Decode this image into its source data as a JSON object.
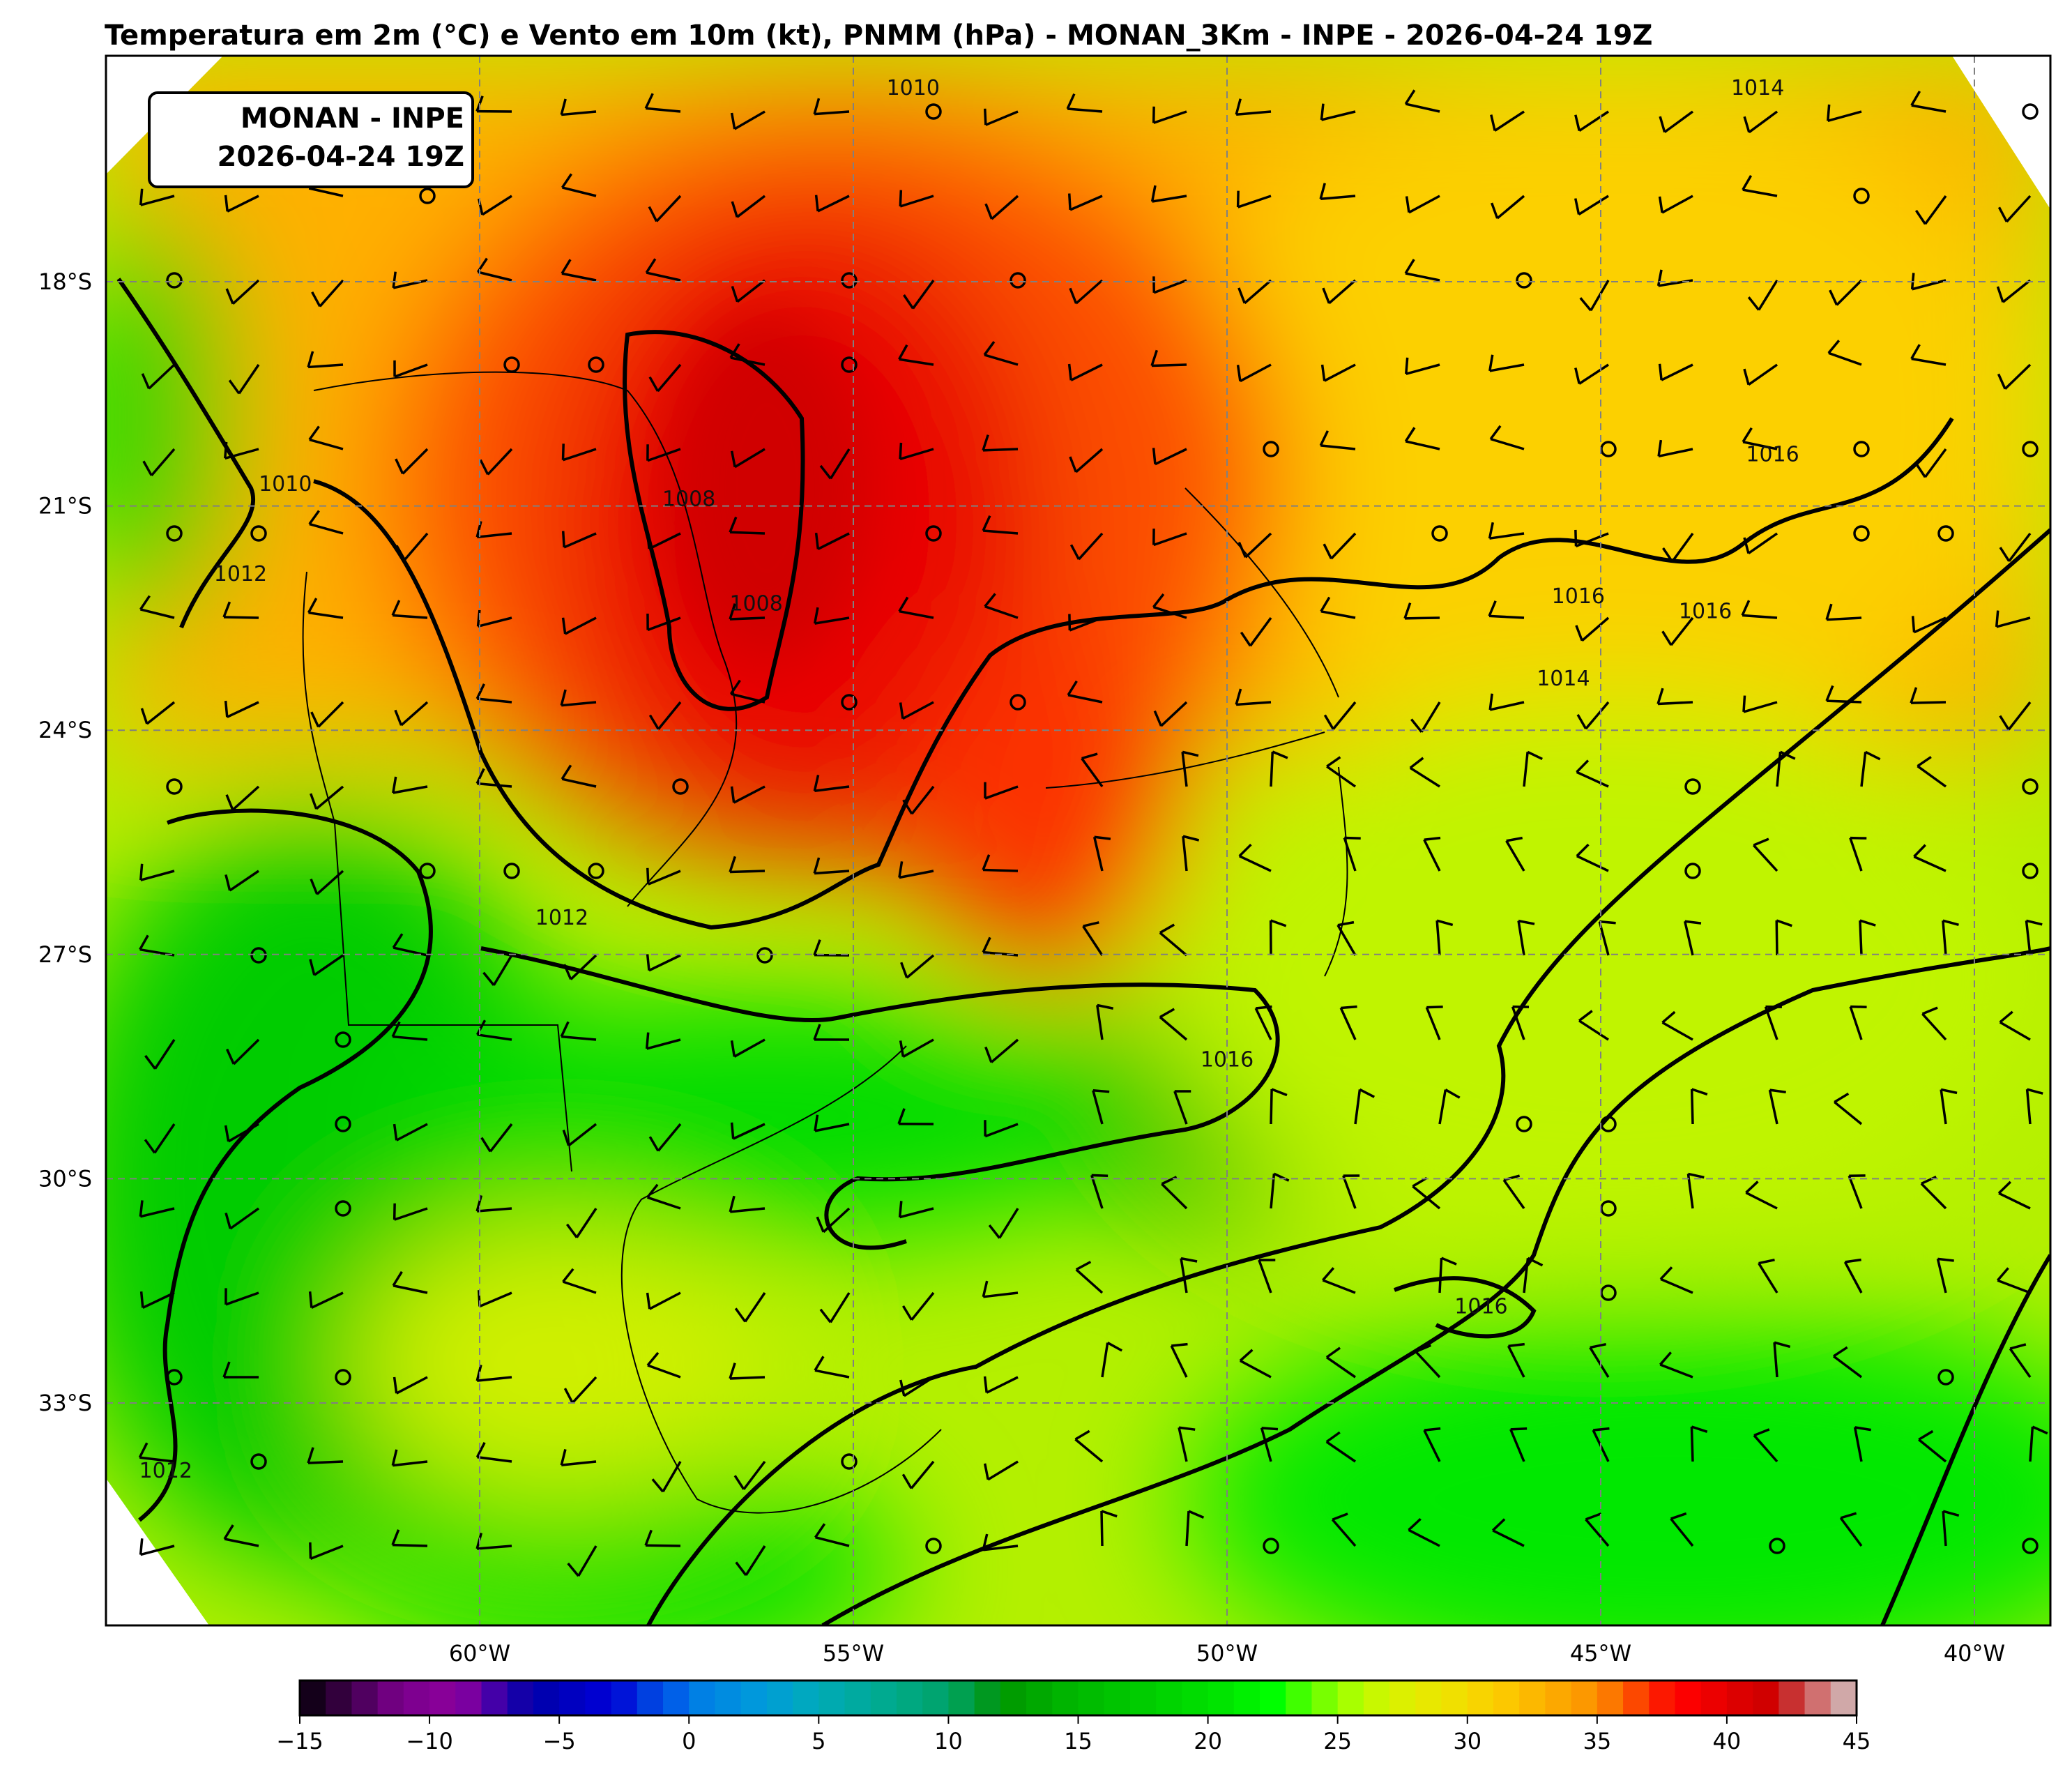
{
  "title": "Temperatura em 2m (°C) e Vento em 10m (kt), PNMM (hPa)  - MONAN_3Km - INPE - 2026-04-24 19Z",
  "info_box": {
    "line1": "MONAN - INPE",
    "line2": "2026-04-24 19Z"
  },
  "map": {
    "lat_labels": [
      {
        "lat": -18,
        "label": "18°S"
      },
      {
        "lat": -21,
        "label": "21°S"
      },
      {
        "lat": -24,
        "label": "24°S"
      },
      {
        "lat": -27,
        "label": "27°S"
      },
      {
        "lat": -30,
        "label": "30°S"
      },
      {
        "lat": -33,
        "label": "33°S"
      }
    ],
    "lon_labels": [
      {
        "lon": -60,
        "label": "60°W"
      },
      {
        "lon": -55,
        "label": "55°W"
      },
      {
        "lon": -50,
        "label": "50°W"
      },
      {
        "lon": -45,
        "label": "45°W"
      },
      {
        "lon": -40,
        "label": "40°W"
      }
    ],
    "isobar_labels": [
      {
        "text": "1010",
        "lon": -62.6,
        "lat": -20.8
      },
      {
        "text": "1012",
        "lon": -63.2,
        "lat": -22.0
      },
      {
        "text": "1012",
        "lon": -58.9,
        "lat": -26.6
      },
      {
        "text": "1008",
        "lon": -57.2,
        "lat": -21.0
      },
      {
        "text": "1008",
        "lon": -56.3,
        "lat": -22.4
      },
      {
        "text": "1010",
        "lon": -54.2,
        "lat": -15.5
      },
      {
        "text": "1016",
        "lon": -50.0,
        "lat": -28.5
      },
      {
        "text": "1016",
        "lon": -45.3,
        "lat": -22.3
      },
      {
        "text": "1016",
        "lon": -43.6,
        "lat": -22.5
      },
      {
        "text": "1014",
        "lon": -45.5,
        "lat": -23.4
      },
      {
        "text": "1016",
        "lon": -42.7,
        "lat": -20.4
      },
      {
        "text": "1014",
        "lon": -42.9,
        "lat": -15.5
      },
      {
        "text": "1016",
        "lon": -46.6,
        "lat": -31.8
      },
      {
        "text": "1012",
        "lon": -64.2,
        "lat": -34.0
      }
    ],
    "colors": {
      "hot": "#e00000",
      "warm": "#ffa500",
      "mild": "#e6ee00",
      "cool": "#00d000",
      "ocean": "#b8f000"
    }
  },
  "colorbar": {
    "min": -15,
    "max": 45,
    "ticks": [
      "−15",
      "−10",
      "−5",
      "0",
      "5",
      "10",
      "15",
      "20",
      "25",
      "30",
      "35",
      "40",
      "45"
    ],
    "colors": [
      "#14001a",
      "#32003c",
      "#500060",
      "#700080",
      "#7e0090",
      "#880098",
      "#7a00a0",
      "#4400a8",
      "#1400a8",
      "#0000b0",
      "#0000c0",
      "#0000d0",
      "#0014d8",
      "#0040e0",
      "#0060e8",
      "#0080e4",
      "#008ce0",
      "#0098dc",
      "#00a0d0",
      "#00a8c0",
      "#00aab0",
      "#00aaa0",
      "#00aa90",
      "#00a880",
      "#00a470",
      "#00a050",
      "#009820",
      "#009c00",
      "#00a800",
      "#00b400",
      "#00bc00",
      "#00c400",
      "#00cc00",
      "#00d400",
      "#00dc00",
      "#00e400",
      "#00f000",
      "#00ff00",
      "#40ff00",
      "#78ff00",
      "#a8ff00",
      "#c8f800",
      "#dcf000",
      "#e8e800",
      "#f0e000",
      "#f8d400",
      "#fcc800",
      "#fcb800",
      "#fca800",
      "#fc9800",
      "#fc7800",
      "#fc4800",
      "#fc1800",
      "#fc0000",
      "#ec0000",
      "#dc0000",
      "#d00000",
      "#c83030",
      "#d07070",
      "#d0a8a8"
    ]
  }
}
